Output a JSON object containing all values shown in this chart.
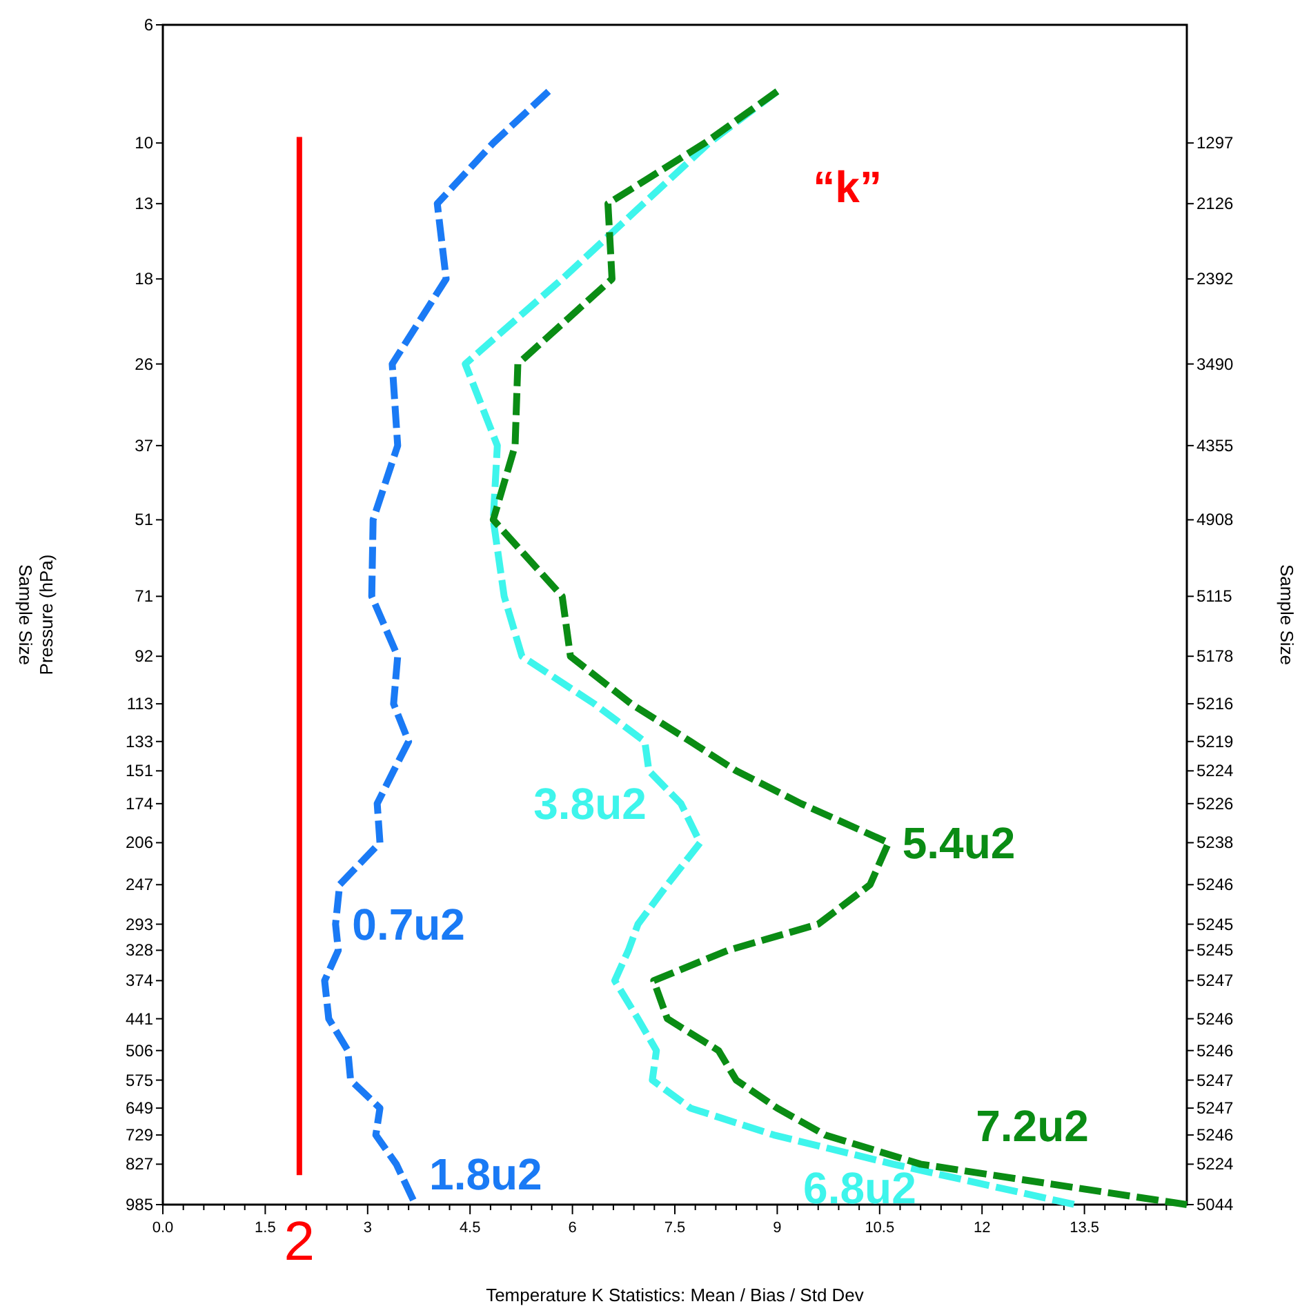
{
  "chart_data": {
    "type": "line",
    "xlabel": "Temperature K Statistics: Mean / Bias / Std Dev",
    "ylabel": "Sample Size\nPressure (hPa)",
    "xlim": [
      0,
      15
    ],
    "xticks": [
      {
        "value": 0,
        "label": "0.0"
      },
      {
        "value": 0.3,
        "label": null
      },
      {
        "value": 0.6,
        "label": null
      },
      {
        "value": 0.9,
        "label": null
      },
      {
        "value": 1.2,
        "label": null
      },
      {
        "value": 1.5,
        "label": "1.5"
      },
      {
        "value": 1.8,
        "label": null
      },
      {
        "value": 2.1,
        "label": null
      },
      {
        "value": 2.4,
        "label": null
      },
      {
        "value": 2.7,
        "label": null
      },
      3,
      {
        "value": 3.3,
        "label": null
      },
      {
        "value": 3.6,
        "label": null
      },
      {
        "value": 3.9,
        "label": null
      },
      {
        "value": 4.2,
        "label": null
      },
      {
        "value": 4.5,
        "label": "4.5"
      },
      {
        "value": 4.8,
        "label": null
      },
      {
        "value": 5.1,
        "label": null
      },
      {
        "value": 5.4,
        "label": null
      },
      {
        "value": 5.7,
        "label": null
      },
      6,
      {
        "value": 6.3,
        "label": null
      },
      {
        "value": 6.6,
        "label": null
      },
      {
        "value": 6.9,
        "label": null
      },
      {
        "value": 7.2,
        "label": null
      },
      {
        "value": 7.5,
        "label": "7.5"
      },
      {
        "value": 7.8,
        "label": null
      },
      {
        "value": 8.1,
        "label": null
      },
      {
        "value": 8.4,
        "label": null
      },
      {
        "value": 8.7,
        "label": null
      },
      9,
      {
        "value": 9.3,
        "label": null
      },
      {
        "value": 9.6,
        "label": null
      },
      {
        "value": 9.9,
        "label": null
      },
      {
        "value": 10.2,
        "label": null
      },
      {
        "value": 10.5,
        "label": "10.5"
      },
      {
        "value": 10.8,
        "label": null
      },
      {
        "value": 11.1,
        "label": null
      },
      {
        "value": 11.4,
        "label": null
      },
      {
        "value": 11.7,
        "label": null
      },
      12,
      {
        "value": 12.3,
        "label": null
      },
      {
        "value": 12.6,
        "label": null
      },
      {
        "value": 12.9,
        "label": null
      },
      {
        "value": 13.2,
        "label": null
      },
      {
        "value": 13.5,
        "label": "13.5"
      },
      {
        "value": 13.8,
        "label": null
      },
      {
        "value": 14.1,
        "label": null
      },
      {
        "value": 14.4,
        "label": null
      },
      {
        "value": 14.7,
        "label": null
      }
    ],
    "ylim": [
      985,
      6
    ],
    "yticks": [
      6,
      10,
      13,
      18,
      26,
      37,
      51,
      71,
      92,
      113,
      133,
      151,
      174,
      206,
      247,
      293,
      328,
      374,
      441,
      506,
      575,
      649,
      729,
      827,
      985
    ],
    "log": "y",
    "line_style": "dashed",
    "grid": false,
    "series": [
      {
        "color": "#1a7af5",
        "x": [
          5.65,
          4.84,
          4.02,
          4.15,
          3.36,
          3.44,
          3.08,
          3.06,
          3.44,
          3.38,
          3.6,
          3.38,
          3.14,
          3.18,
          2.59,
          2.53,
          2.57,
          2.37,
          2.43,
          2.71,
          2.75,
          3.18,
          3.12,
          3.42,
          3.7
        ],
        "values": [
          8,
          10,
          13,
          18,
          26,
          37,
          51,
          71,
          92,
          113,
          133,
          151,
          174,
          206,
          247,
          293,
          328,
          374,
          441,
          506,
          575,
          649,
          729,
          827,
          985
        ]
      },
      {
        "color": "#3ef5ec",
        "x": [
          9.0,
          8.0,
          7.04,
          5.85,
          4.43,
          4.9,
          4.84,
          5.0,
          5.26,
          6.32,
          7.06,
          7.12,
          7.59,
          7.87,
          7.39,
          6.96,
          6.82,
          6.62,
          6.96,
          7.23,
          7.17,
          7.73,
          8.95,
          10.7,
          13.36
        ],
        "values": [
          8,
          10,
          13,
          18,
          26,
          37,
          51,
          71,
          92,
          113,
          133,
          151,
          174,
          206,
          247,
          293,
          328,
          374,
          441,
          506,
          575,
          649,
          729,
          827,
          985
        ]
      },
      {
        "color": "#0a8c14",
        "x": [
          9.0,
          7.94,
          6.52,
          6.58,
          5.2,
          5.16,
          4.84,
          5.85,
          5.97,
          6.86,
          7.73,
          8.4,
          9.35,
          10.63,
          10.36,
          9.6,
          8.28,
          7.19,
          7.39,
          8.14,
          8.4,
          9.0,
          9.7,
          11.1,
          15.0
        ],
        "values": [
          8,
          10,
          13,
          18,
          26,
          37,
          51,
          71,
          92,
          113,
          133,
          151,
          174,
          206,
          247,
          293,
          328,
          374,
          441,
          506,
          575,
          649,
          729,
          827,
          985
        ]
      }
    ],
    "ref_lines": [
      {
        "axis": "x",
        "value": 2,
        "label": "2",
        "color": "#ff0000"
      }
    ],
    "annotations": [
      "“k”",
      "0.7u2",
      "1.8u2",
      "3.8u2",
      "5.4u2",
      "6.8u2",
      "7.2u2",
      "Sample Size",
      "1297",
      "2126",
      "2392",
      "3490",
      "4355",
      "4908",
      "5115",
      "5178",
      "5216",
      "5219",
      "5224",
      "5226",
      "5238",
      "5246",
      "5245",
      "5245",
      "5247",
      "5246",
      "5246",
      "5247",
      "5247",
      "5246",
      "5224",
      "5044"
    ]
  }
}
